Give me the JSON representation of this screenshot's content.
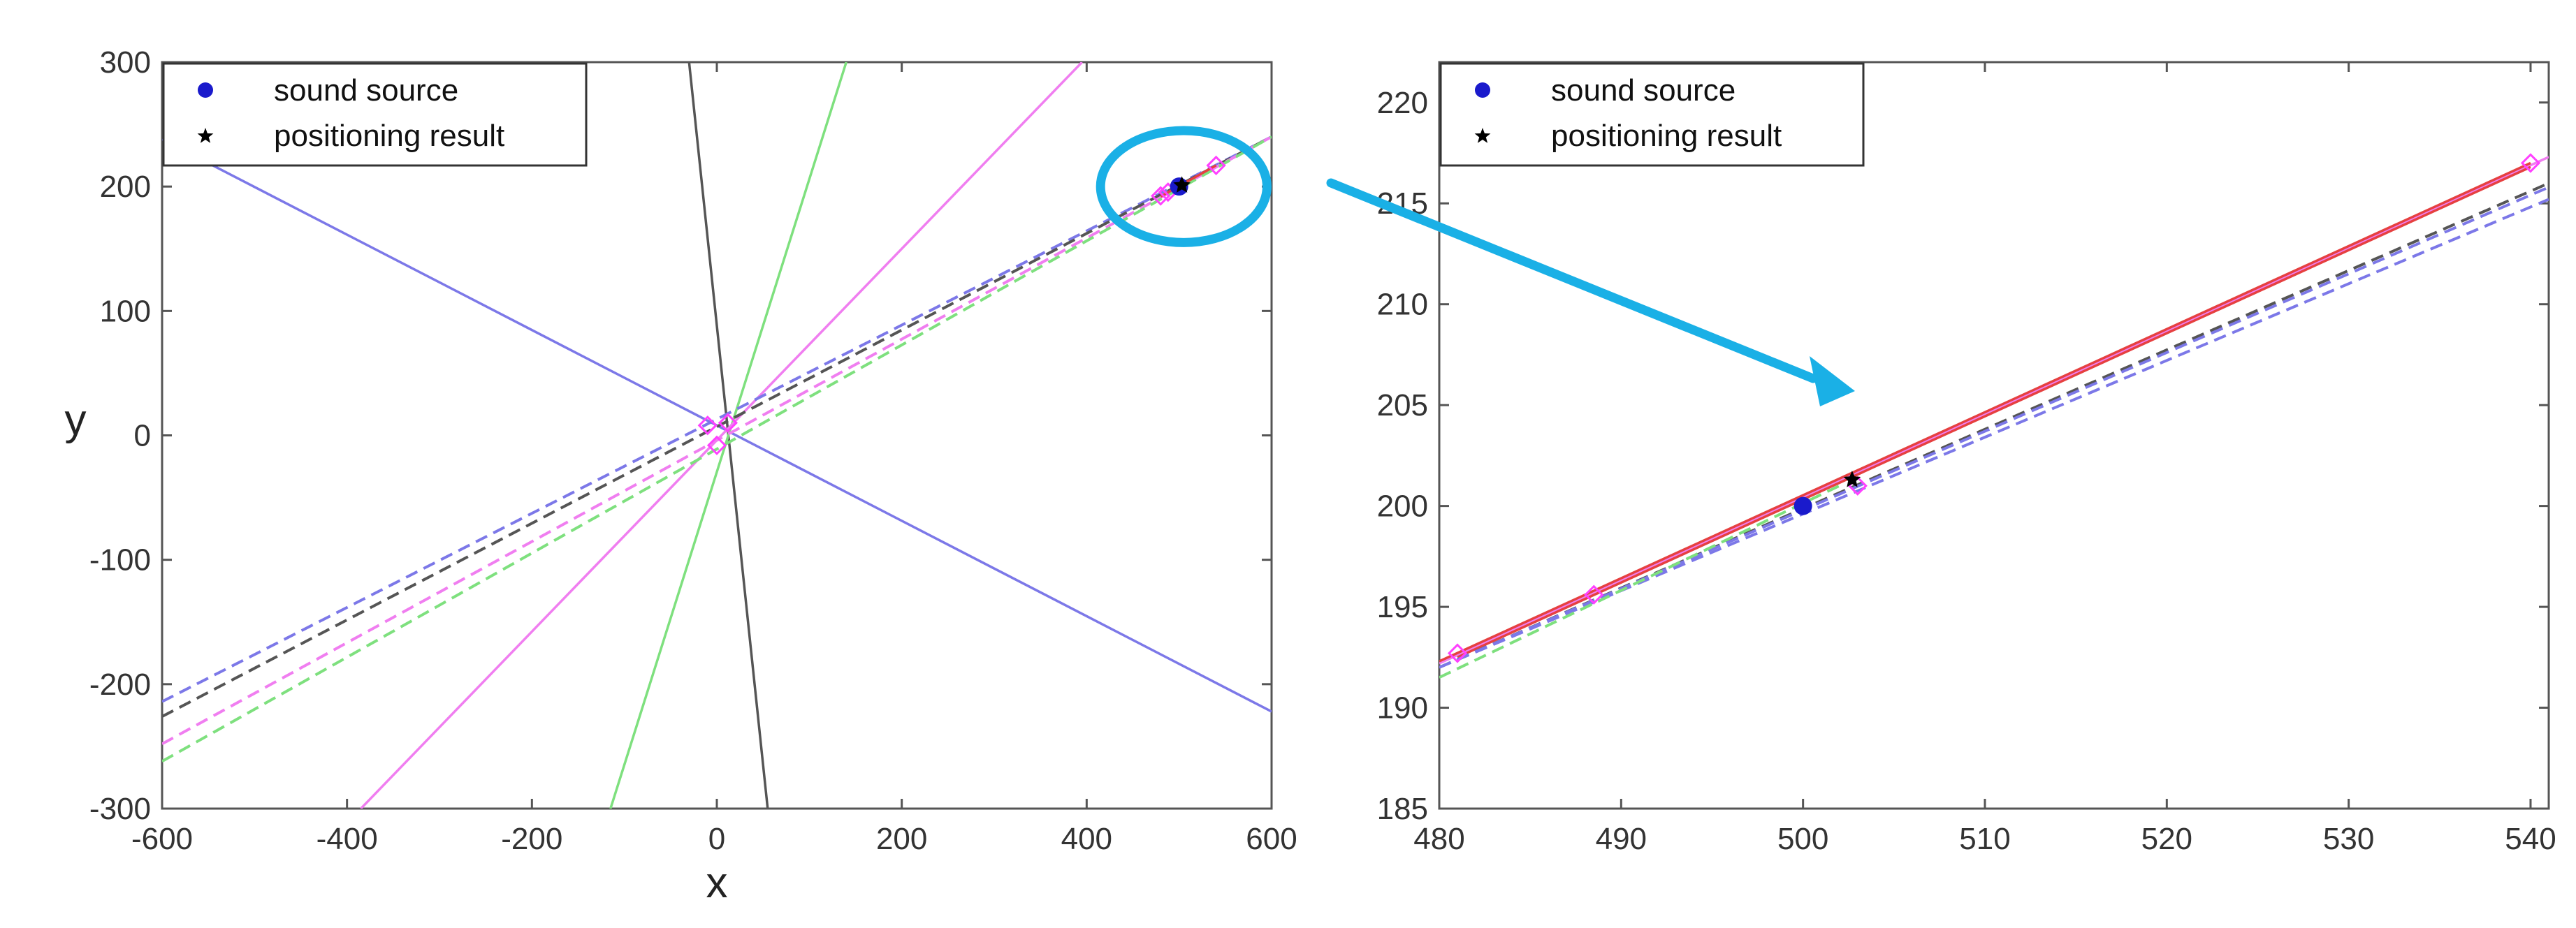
{
  "chart_data": [
    {
      "type": "line",
      "title": "",
      "xlabel": "x",
      "ylabel": "y",
      "xlim": [
        -600,
        600
      ],
      "ylim": [
        -300,
        300
      ],
      "xticks": [
        "-600",
        "-400",
        "-200",
        "0",
        "200",
        "400",
        "600"
      ],
      "yticks": [
        "300",
        "200",
        "100",
        "0",
        "-100",
        "-200",
        "-300"
      ],
      "legend": {
        "placement": "top-left",
        "entries": [
          "sound source",
          "positioning result"
        ]
      },
      "lines": [
        {
          "color": "#7c78e8",
          "style": "solid",
          "points": [
            [
              -600,
              238
            ],
            [
              600,
              -222
            ]
          ]
        },
        {
          "color": "#555555",
          "style": "solid",
          "points": [
            [
              -30,
              300
            ],
            [
              55,
              -300
            ]
          ]
        },
        {
          "color": "#7ee07e",
          "style": "solid",
          "points": [
            [
              140,
              300
            ],
            [
              -115,
              -300
            ]
          ]
        },
        {
          "color": "#f07ef0",
          "style": "solid",
          "points": [
            [
              395,
              300
            ],
            [
              -385,
              -300
            ]
          ]
        },
        {
          "color": "#7c78e8",
          "style": "dashed",
          "points": [
            [
              -600,
              -214
            ],
            [
              600,
              240
            ]
          ]
        },
        {
          "color": "#555555",
          "style": "dashed",
          "points": [
            [
              -600,
              -226
            ],
            [
              600,
              240
            ]
          ]
        },
        {
          "color": "#f07ef0",
          "style": "dashed",
          "points": [
            [
              -600,
              -248
            ],
            [
              600,
              240
            ]
          ]
        },
        {
          "color": "#7ee07e",
          "style": "dashed",
          "points": [
            [
              -600,
              -262
            ],
            [
              600,
              240
            ]
          ]
        },
        {
          "color": "#e64040",
          "style": "solid",
          "points": [
            [
              480,
              192
            ],
            [
              540,
              217
            ]
          ]
        }
      ],
      "markers": [
        {
          "kind": "diamond",
          "color": "#ff40ff",
          "points": [
            [
              480,
              192.5
            ],
            [
              488,
              195.5
            ],
            [
              540,
              217
            ],
            [
              -10,
              8
            ],
            [
              12,
              10
            ],
            [
              0,
              -8
            ]
          ]
        },
        {
          "kind": "sound-source",
          "color": "#1a1acc",
          "points": [
            [
              500,
              200
            ]
          ]
        },
        {
          "kind": "positioning-result",
          "color": "#000000",
          "points": [
            [
              503,
              201
            ]
          ]
        }
      ],
      "highlight": {
        "shape": "ellipse",
        "color": "#1ab0e6",
        "center": [
          505,
          200
        ],
        "rx": 90,
        "ry": 45
      },
      "series": [
        {
          "name": "sound source",
          "x": [
            500
          ],
          "y": [
            200
          ],
          "marker": "circle",
          "color": "#1a1acc"
        },
        {
          "name": "positioning result",
          "x": [
            503
          ],
          "y": [
            201
          ],
          "marker": "star",
          "color": "#000000"
        }
      ]
    },
    {
      "type": "line",
      "title": "",
      "xlabel": "",
      "ylabel": "",
      "xlim": [
        480,
        541
      ],
      "ylim": [
        185,
        222
      ],
      "xticks": [
        "480",
        "490",
        "500",
        "510",
        "520",
        "530",
        "540"
      ],
      "yticks": [
        "220",
        "215",
        "210",
        "205",
        "200",
        "195",
        "190",
        "185"
      ],
      "legend": {
        "placement": "top-left",
        "entries": [
          "sound source",
          "positioning result"
        ]
      },
      "lines": [
        {
          "color": "#f07ef0",
          "style": "solid",
          "points": [
            [
              480,
              192.2
            ],
            [
              541,
              217.3
            ]
          ]
        },
        {
          "color": "#e64040",
          "style": "solid",
          "points": [
            [
              480,
              192.3
            ],
            [
              540,
              217
            ]
          ]
        },
        {
          "color": "#e64040",
          "style": "solid",
          "points": [
            [
              481,
              192.5
            ],
            [
              540,
              216.8
            ]
          ]
        },
        {
          "color": "#555555",
          "style": "dashed",
          "points": [
            [
              480,
              192
            ],
            [
              541,
              216
            ]
          ]
        },
        {
          "color": "#7c78e8",
          "style": "dashed",
          "points": [
            [
              480,
              192
            ],
            [
              541,
              215.8
            ]
          ]
        },
        {
          "color": "#7c78e8",
          "style": "dashed",
          "points": [
            [
              480,
              192
            ],
            [
              541,
              215.2
            ]
          ]
        },
        {
          "color": "#7ee07e",
          "style": "dashed",
          "points": [
            [
              480,
              191.5
            ],
            [
              502,
              201
            ]
          ]
        }
      ],
      "markers": [
        {
          "kind": "diamond",
          "color": "#ff40ff",
          "points": [
            [
              481,
              192.7
            ],
            [
              488.5,
              195.6
            ],
            [
              503,
              201
            ],
            [
              540,
              217
            ]
          ]
        },
        {
          "kind": "sound-source",
          "color": "#1a1acc",
          "points": [
            [
              500,
              200
            ]
          ]
        },
        {
          "kind": "positioning-result",
          "color": "#000000",
          "points": [
            [
              502.7,
              201.3
            ]
          ]
        }
      ],
      "series": [
        {
          "name": "sound source",
          "x": [
            500
          ],
          "y": [
            200
          ],
          "marker": "circle",
          "color": "#1a1acc"
        },
        {
          "name": "positioning result",
          "x": [
            502.7
          ],
          "y": [
            201.3
          ],
          "marker": "star",
          "color": "#000000"
        }
      ]
    }
  ],
  "annotation": {
    "arrow_color": "#1ab0e6",
    "meaning": "zoom from left highlight to right plot"
  }
}
